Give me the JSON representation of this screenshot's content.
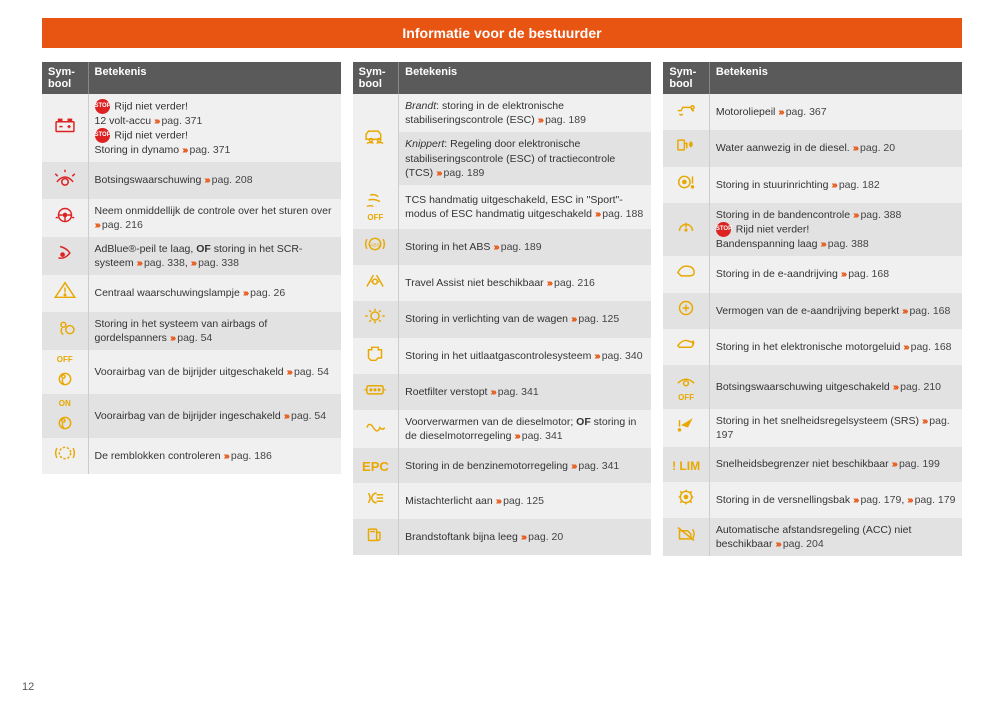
{
  "page_title": "Informatie voor de bestuurder",
  "page_number": "12",
  "headers": {
    "sym": "Sym-\nbool",
    "meaning": "Betekenis"
  },
  "chev": "›››",
  "pag_label": "pag.",
  "stop_text": "STOP",
  "columns": [
    {
      "rows": [
        {
          "icon": "battery",
          "color": "red",
          "parity": "even",
          "lines": [
            {
              "pre_stop": true,
              "text": "Rijd niet verder!"
            },
            {
              "text": "12 volt-accu",
              "page": "371"
            },
            {
              "pre_stop": true,
              "text": "Rijd niet verder!"
            },
            {
              "text": "Storing in dynamo",
              "page": "371"
            }
          ]
        },
        {
          "icon": "collision",
          "color": "red",
          "parity": "odd",
          "lines": [
            {
              "text": "Botsingswaarschuwing",
              "page": "208"
            }
          ]
        },
        {
          "icon": "steering-hands",
          "color": "red",
          "parity": "even",
          "lines": [
            {
              "text": "Neem onmiddellijk de controle over het sturen over",
              "page": "216"
            }
          ]
        },
        {
          "icon": "adblue",
          "color": "red",
          "parity": "odd",
          "lines": [
            {
              "html": "AdBlue®-peil te laag, <b>OF</b> storing in het SCR-systeem",
              "pages": [
                "338",
                "338"
              ]
            }
          ]
        },
        {
          "icon": "triangle",
          "color": "amber",
          "parity": "even",
          "lines": [
            {
              "text": "Centraal waarschuwingslampje",
              "page": "26"
            }
          ]
        },
        {
          "icon": "airbag",
          "color": "amber",
          "parity": "odd",
          "lines": [
            {
              "text": "Storing in het systeem van airbags of gordelspanners",
              "page": "54"
            }
          ]
        },
        {
          "icon": "off-airbag",
          "color": "amber",
          "parity": "even",
          "label": "OFF",
          "lines": [
            {
              "text": "Voorairbag van de bijrijder uitgeschakeld",
              "page": "54"
            }
          ]
        },
        {
          "icon": "on-airbag",
          "color": "amber",
          "parity": "odd",
          "label": "ON",
          "lines": [
            {
              "text": "Voorairbag van de bijrijder ingeschakeld",
              "page": "54"
            }
          ]
        },
        {
          "icon": "brake-pads",
          "color": "amber",
          "parity": "even",
          "lines": [
            {
              "text": "De remblokken controleren",
              "page": "186"
            }
          ]
        }
      ]
    },
    {
      "rows": [
        {
          "icon": "esc-skid",
          "color": "amber",
          "parity": "even",
          "lines": [
            {
              "html": "<i>Brandt</i>: storing in de elektronische stabiliseringscontrole (ESC)",
              "page": "189"
            }
          ]
        },
        {
          "icon": null,
          "parity": "odd",
          "merge_up": true,
          "lines": [
            {
              "html": "<i>Knippert</i>: Regeling door elektronische stabiliseringscontrole (ESC) of tractiecontrole (TCS)",
              "page": "189"
            }
          ]
        },
        {
          "icon": "esc-off",
          "color": "amber",
          "parity": "even",
          "label": "OFF",
          "lines": [
            {
              "text": "TCS handmatig uitgeschakeld, ESC in \"Sport\"-modus of ESC handmatig uitgeschakeld",
              "page": "188"
            }
          ]
        },
        {
          "icon": "abs",
          "color": "amber",
          "parity": "odd",
          "lines": [
            {
              "text": "Storing in het ABS",
              "page": "189"
            }
          ]
        },
        {
          "icon": "travel-assist",
          "color": "amber",
          "parity": "even",
          "lines": [
            {
              "text": "Travel Assist niet beschikbaar",
              "page": "216"
            }
          ]
        },
        {
          "icon": "bulb",
          "color": "amber",
          "parity": "odd",
          "lines": [
            {
              "text": "Storing in verlichting van de wagen",
              "page": "125"
            }
          ]
        },
        {
          "icon": "engine",
          "color": "amber",
          "parity": "even",
          "lines": [
            {
              "text": "Storing in het uitlaatgascontrolesysteem",
              "page": "340"
            }
          ]
        },
        {
          "icon": "dpf",
          "color": "amber",
          "parity": "odd",
          "lines": [
            {
              "text": "Roetfilter verstopt",
              "page": "341"
            }
          ]
        },
        {
          "icon": "glow-plug",
          "color": "amber",
          "parity": "even",
          "lines": [
            {
              "html": "Voorverwarmen van de dieselmotor; <b>OF</b> storing in de dieselmotorregeling",
              "page": "341"
            }
          ]
        },
        {
          "icon": "epc",
          "color": "amber",
          "parity": "odd",
          "label": "EPC",
          "lines": [
            {
              "text": "Storing in de benzinemotorregeling",
              "page": "341"
            }
          ]
        },
        {
          "icon": "rear-fog",
          "color": "amber",
          "parity": "even",
          "lines": [
            {
              "text": "Mistachterlicht aan",
              "page": "125"
            }
          ]
        },
        {
          "icon": "fuel",
          "color": "amber",
          "parity": "odd",
          "lines": [
            {
              "text": "Brandstoftank bijna leeg",
              "page": "20"
            }
          ]
        }
      ]
    },
    {
      "rows": [
        {
          "icon": "oil-level",
          "color": "amber",
          "parity": "even",
          "lines": [
            {
              "text": "Motoroliepeil",
              "page": "367"
            }
          ]
        },
        {
          "icon": "water-fuel",
          "color": "amber",
          "parity": "odd",
          "lines": [
            {
              "text": "Water aanwezig in de diesel.",
              "page": "20"
            }
          ]
        },
        {
          "icon": "steering-excl",
          "color": "amber",
          "parity": "even",
          "lines": [
            {
              "text": "Storing in stuurinrichting",
              "page": "182"
            }
          ]
        },
        {
          "icon": "tpms",
          "color": "amber",
          "parity": "odd",
          "lines": [
            {
              "text": "Storing in de bandencontrole",
              "page": "388"
            },
            {
              "pre_stop": true,
              "text": "Rijd niet verder!"
            },
            {
              "text": "Bandenspanning laag",
              "page": "388"
            }
          ]
        },
        {
          "icon": "e-drive",
          "color": "amber",
          "parity": "even",
          "lines": [
            {
              "text": "Storing in de e-aandrijving",
              "page": "168"
            }
          ]
        },
        {
          "icon": "e-power-limit",
          "color": "amber",
          "parity": "odd",
          "lines": [
            {
              "text": "Vermogen van de e-aandrijving beperkt",
              "page": "168"
            }
          ]
        },
        {
          "icon": "e-sound",
          "color": "amber",
          "parity": "even",
          "lines": [
            {
              "text": "Storing in het elektronische motorgeluid",
              "page": "168"
            }
          ]
        },
        {
          "icon": "collision-off",
          "color": "amber",
          "parity": "odd",
          "label": "OFF",
          "lines": [
            {
              "text": "Botsingswaarschuwing uitgeschakeld",
              "page": "210"
            }
          ]
        },
        {
          "icon": "cruise-fail",
          "color": "amber",
          "parity": "even",
          "lines": [
            {
              "text": "Storing in het snelheidsregelsysteem (SRS)",
              "page": "197"
            }
          ]
        },
        {
          "icon": "lim",
          "color": "amber",
          "parity": "odd",
          "label": "! LIM",
          "lines": [
            {
              "text": "Snelheidsbegrenzer niet beschikbaar",
              "page": "199"
            }
          ]
        },
        {
          "icon": "gearbox",
          "color": "amber",
          "parity": "even",
          "lines": [
            {
              "text": "Storing in de versnellingsbak",
              "pages": [
                "179",
                "179"
              ]
            }
          ]
        },
        {
          "icon": "acc-off",
          "color": "amber",
          "parity": "odd",
          "lines": [
            {
              "text": "Automatische afstandsregeling (ACC) niet beschikbaar",
              "page": "204"
            }
          ]
        }
      ]
    }
  ]
}
